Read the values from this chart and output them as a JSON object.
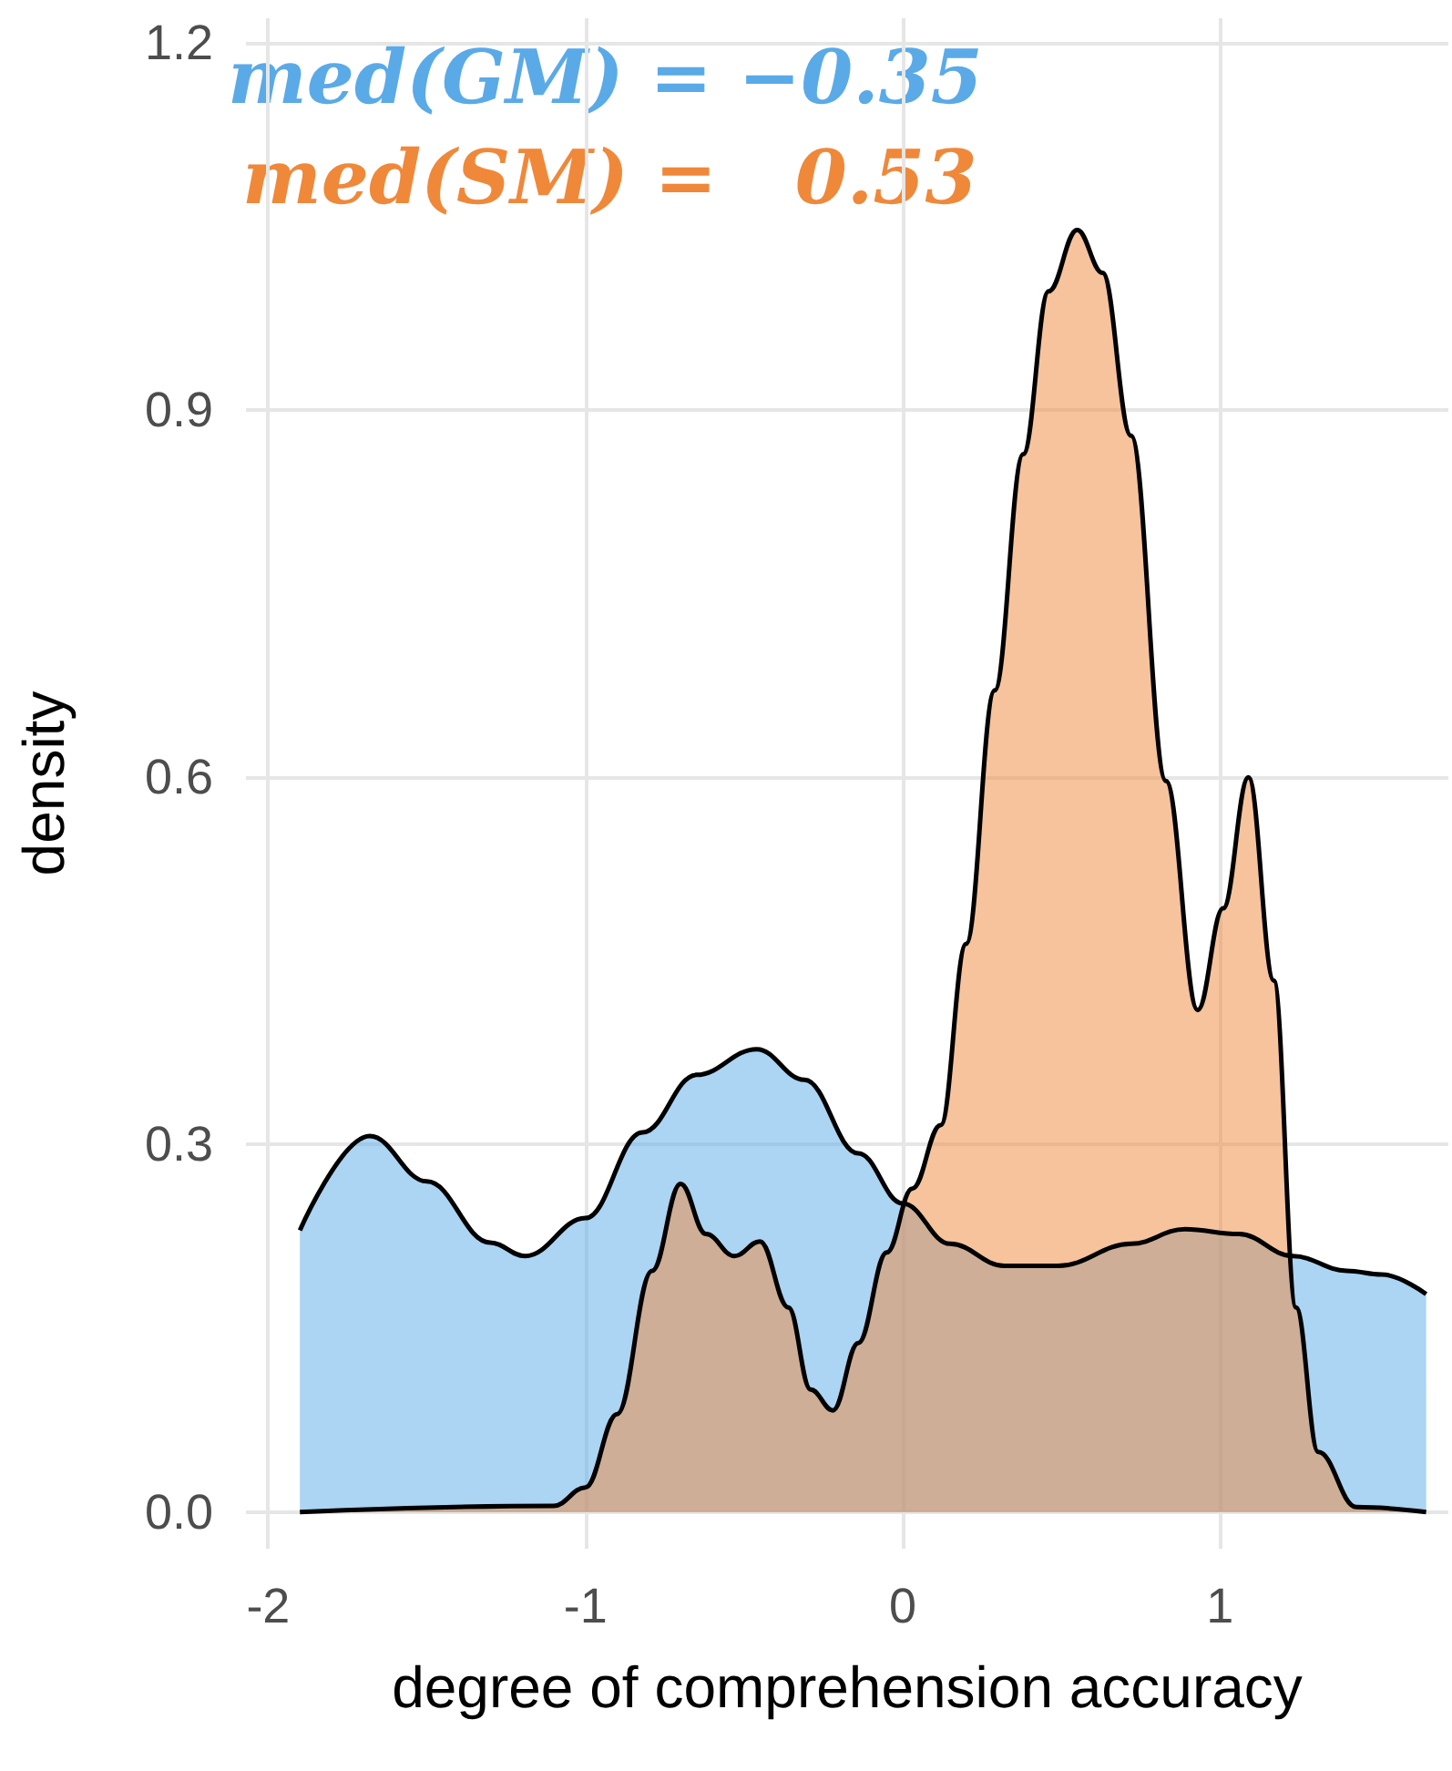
{
  "chart_data": {
    "type": "area",
    "xlabel": "degree of comprehension accuracy",
    "ylabel": "density",
    "annotations": [
      "med(GM) = −0.35",
      "med(SM) =   0.53"
    ],
    "series": [
      {
        "color": "#5aaae8",
        "x": [
          -1.9,
          -1.68,
          -1.5,
          -1.3,
          -1.19,
          -1.0,
          -0.82,
          -0.65,
          -0.46,
          -0.31,
          -0.14,
          0,
          0.15,
          0.32,
          0.49,
          0.72,
          0.89,
          1.06,
          1.23,
          1.4,
          1.51,
          1.65
        ],
        "values": [
          0.23,
          0.307,
          0.27,
          0.22,
          0.209,
          0.24,
          0.31,
          0.357,
          0.378,
          0.353,
          0.293,
          0.252,
          0.219,
          0.201,
          0.201,
          0.219,
          0.231,
          0.227,
          0.209,
          0.197,
          0.194,
          0.178
        ]
      },
      {
        "color": "#f0883a",
        "x": [
          -1.9,
          -1.1,
          -1.0,
          -0.9,
          -0.79,
          -0.7,
          -0.62,
          -0.53,
          -0.45,
          -0.36,
          -0.29,
          -0.22,
          -0.14,
          -0.05,
          0.03,
          0.12,
          0.2,
          0.29,
          0.38,
          0.46,
          0.55,
          0.63,
          0.72,
          0.83,
          0.93,
          1.01,
          1.09,
          1.17,
          1.24,
          1.31,
          1.43,
          1.65
        ],
        "values": [
          0,
          0.005,
          0.02,
          0.08,
          0.197,
          0.268,
          0.227,
          0.209,
          0.221,
          0.167,
          0.1,
          0.083,
          0.138,
          0.212,
          0.264,
          0.316,
          0.464,
          0.671,
          0.864,
          0.997,
          1.047,
          1.012,
          0.879,
          0.597,
          0.41,
          0.493,
          0.6,
          0.434,
          0.167,
          0.049,
          0.004,
          0
        ]
      }
    ],
    "xlim": [
      -2.07,
      1.72
    ],
    "xticks": [
      -2,
      -1,
      0,
      1
    ],
    "ylim": [
      -0.03,
      1.22
    ],
    "yticks": [
      {
        "value": 0,
        "label": "0.0"
      },
      0.3,
      0.6,
      0.9,
      1.2
    ],
    "grid": true,
    "marker": "none",
    "line_style": "solid"
  }
}
